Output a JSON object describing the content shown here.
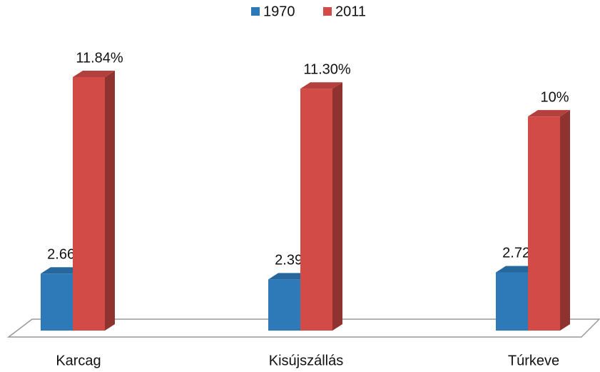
{
  "chart_data": {
    "type": "bar3d",
    "categories": [
      "Karcag",
      "Kisújszállás",
      "Túrkeve"
    ],
    "series": [
      {
        "name": "1970",
        "color": "#2e7ab8",
        "values": [
          2.66,
          2.39,
          2.72
        ],
        "value_labels": [
          "2.66%",
          "2.39%",
          "2.72%"
        ]
      },
      {
        "name": "2011",
        "color": "#d24b47",
        "values": [
          11.84,
          11.3,
          10
        ],
        "value_labels": [
          "11.84%",
          "11.30%",
          "10%"
        ]
      }
    ],
    "legend": "top"
  }
}
